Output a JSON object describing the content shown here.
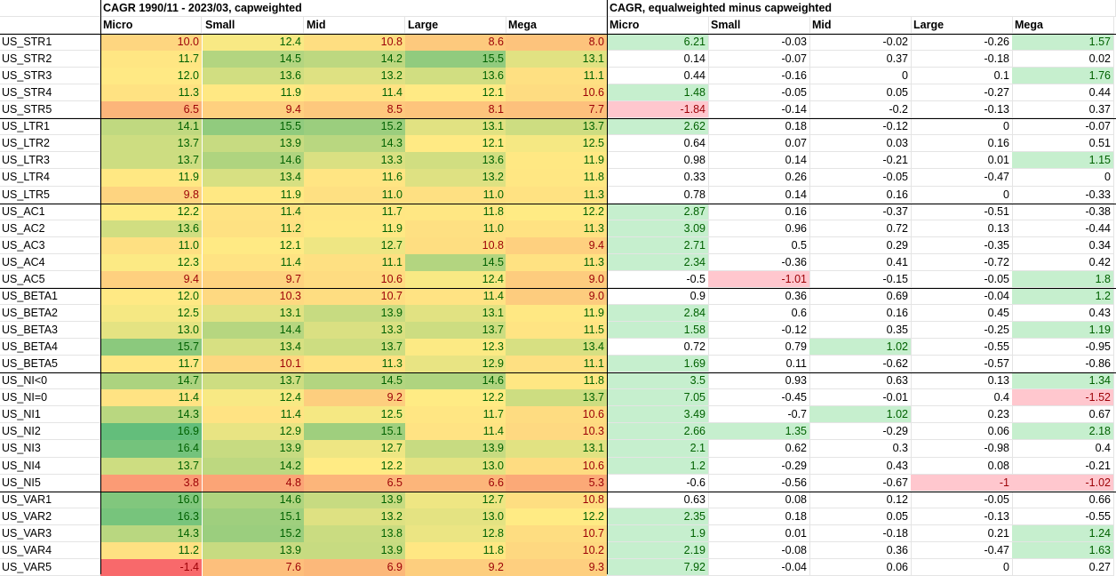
{
  "left_title": "CAGR 1990/11 - 2023/03, capweighted",
  "right_title": "CAGR, equalweighted minus capweighted",
  "columns": [
    "Micro",
    "Small",
    "Mid",
    "Large",
    "Mega"
  ],
  "colors": {
    "scale_low": "#f8696b",
    "scale_mid": "#ffeb84",
    "scale_high": "#63be7b",
    "positive_fill": "#c6efce",
    "positive_text": "#006100",
    "negative_fill": "#ffc7ce",
    "negative_text": "#9c0006"
  },
  "rows": [
    {
      "label": "US_STR1",
      "cap": [
        "10.0",
        "12.4",
        "10.8",
        "8.6",
        "8.0"
      ],
      "diff": [
        "6.21",
        "-0.03",
        "-0.02",
        "-0.26",
        "1.57"
      ]
    },
    {
      "label": "US_STR2",
      "cap": [
        "11.7",
        "14.5",
        "14.2",
        "15.5",
        "13.1"
      ],
      "diff": [
        "0.14",
        "-0.07",
        "0.37",
        "-0.18",
        "0.02"
      ]
    },
    {
      "label": "US_STR3",
      "cap": [
        "12.0",
        "13.6",
        "13.2",
        "13.6",
        "11.1"
      ],
      "diff": [
        "0.44",
        "-0.16",
        "0",
        "0.1",
        "1.76"
      ]
    },
    {
      "label": "US_STR4",
      "cap": [
        "11.3",
        "11.9",
        "11.4",
        "12.1",
        "10.6"
      ],
      "diff": [
        "1.48",
        "-0.05",
        "0.05",
        "-0.27",
        "0.44"
      ]
    },
    {
      "label": "US_STR5",
      "cap": [
        "6.5",
        "9.4",
        "8.5",
        "8.1",
        "7.7"
      ],
      "diff": [
        "-1.84",
        "-0.14",
        "-0.2",
        "-0.13",
        "0.37"
      ]
    },
    {
      "label": "US_LTR1",
      "cap": [
        "14.1",
        "15.5",
        "15.2",
        "13.1",
        "13.7"
      ],
      "diff": [
        "2.62",
        "0.18",
        "-0.12",
        "0",
        "-0.07"
      ]
    },
    {
      "label": "US_LTR2",
      "cap": [
        "13.7",
        "13.9",
        "14.3",
        "12.1",
        "12.5"
      ],
      "diff": [
        "0.64",
        "0.07",
        "0.03",
        "0.16",
        "0.51"
      ]
    },
    {
      "label": "US_LTR3",
      "cap": [
        "13.7",
        "14.6",
        "13.3",
        "13.6",
        "11.9"
      ],
      "diff": [
        "0.98",
        "0.14",
        "-0.21",
        "0.01",
        "1.15"
      ]
    },
    {
      "label": "US_LTR4",
      "cap": [
        "11.9",
        "13.4",
        "11.6",
        "13.2",
        "11.8"
      ],
      "diff": [
        "0.33",
        "0.26",
        "-0.05",
        "-0.47",
        "0"
      ]
    },
    {
      "label": "US_LTR5",
      "cap": [
        "9.8",
        "11.9",
        "11.0",
        "11.0",
        "11.3"
      ],
      "diff": [
        "0.78",
        "0.14",
        "0.16",
        "0",
        "-0.33"
      ]
    },
    {
      "label": "US_AC1",
      "cap": [
        "12.2",
        "11.4",
        "11.7",
        "11.8",
        "12.2"
      ],
      "diff": [
        "2.87",
        "0.16",
        "-0.37",
        "-0.51",
        "-0.38"
      ]
    },
    {
      "label": "US_AC2",
      "cap": [
        "13.6",
        "11.2",
        "11.9",
        "11.0",
        "11.3"
      ],
      "diff": [
        "3.09",
        "0.96",
        "0.72",
        "0.13",
        "-0.44"
      ]
    },
    {
      "label": "US_AC3",
      "cap": [
        "11.0",
        "12.1",
        "12.7",
        "10.8",
        "9.4"
      ],
      "diff": [
        "2.71",
        "0.5",
        "0.29",
        "-0.35",
        "0.34"
      ]
    },
    {
      "label": "US_AC4",
      "cap": [
        "12.3",
        "11.4",
        "11.1",
        "14.5",
        "11.3"
      ],
      "diff": [
        "2.34",
        "-0.36",
        "0.41",
        "-0.72",
        "0.42"
      ]
    },
    {
      "label": "US_AC5",
      "cap": [
        "9.4",
        "9.7",
        "10.6",
        "12.4",
        "9.0"
      ],
      "diff": [
        "-0.5",
        "-1.01",
        "-0.15",
        "-0.05",
        "1.8"
      ]
    },
    {
      "label": "US_BETA1",
      "cap": [
        "12.0",
        "10.3",
        "10.7",
        "11.4",
        "9.0"
      ],
      "diff": [
        "0.9",
        "0.36",
        "0.69",
        "-0.04",
        "1.2"
      ]
    },
    {
      "label": "US_BETA2",
      "cap": [
        "12.5",
        "13.1",
        "13.9",
        "13.1",
        "11.9"
      ],
      "diff": [
        "2.84",
        "0.6",
        "0.16",
        "0.45",
        "0.43"
      ]
    },
    {
      "label": "US_BETA3",
      "cap": [
        "13.0",
        "14.4",
        "13.3",
        "13.7",
        "11.5"
      ],
      "diff": [
        "1.58",
        "-0.12",
        "0.35",
        "-0.25",
        "1.19"
      ]
    },
    {
      "label": "US_BETA4",
      "cap": [
        "15.7",
        "13.4",
        "13.7",
        "12.3",
        "13.4"
      ],
      "diff": [
        "0.72",
        "0.79",
        "1.02",
        "-0.55",
        "-0.95"
      ]
    },
    {
      "label": "US_BETA5",
      "cap": [
        "11.7",
        "10.1",
        "11.3",
        "12.9",
        "11.1"
      ],
      "diff": [
        "1.69",
        "0.11",
        "-0.62",
        "-0.57",
        "-0.86"
      ]
    },
    {
      "label": "US_NI<0",
      "cap": [
        "14.7",
        "13.7",
        "14.5",
        "14.6",
        "11.8"
      ],
      "diff": [
        "3.5",
        "0.93",
        "0.63",
        "0.13",
        "1.34"
      ]
    },
    {
      "label": "US_NI=0",
      "cap": [
        "11.4",
        "12.4",
        "9.2",
        "12.2",
        "13.7"
      ],
      "diff": [
        "7.05",
        "-0.45",
        "-0.01",
        "0.4",
        "-1.52"
      ]
    },
    {
      "label": "US_NI1",
      "cap": [
        "14.3",
        "11.4",
        "12.5",
        "11.7",
        "10.6"
      ],
      "diff": [
        "3.49",
        "-0.7",
        "1.02",
        "0.23",
        "0.67"
      ]
    },
    {
      "label": "US_NI2",
      "cap": [
        "16.9",
        "12.9",
        "15.1",
        "11.4",
        "10.3"
      ],
      "diff": [
        "2.66",
        "1.35",
        "-0.29",
        "0.06",
        "2.18"
      ]
    },
    {
      "label": "US_NI3",
      "cap": [
        "16.4",
        "13.9",
        "12.7",
        "13.9",
        "13.1"
      ],
      "diff": [
        "2.1",
        "0.62",
        "0.3",
        "-0.98",
        "0.4"
      ]
    },
    {
      "label": "US_NI4",
      "cap": [
        "13.7",
        "14.2",
        "12.2",
        "13.0",
        "10.6"
      ],
      "diff": [
        "1.2",
        "-0.29",
        "0.43",
        "0.08",
        "-0.21"
      ]
    },
    {
      "label": "US_NI5",
      "cap": [
        "3.8",
        "4.8",
        "6.5",
        "6.6",
        "5.3"
      ],
      "diff": [
        "-0.6",
        "-0.56",
        "-0.67",
        "-1",
        "-1.02"
      ]
    },
    {
      "label": "US_VAR1",
      "cap": [
        "16.0",
        "14.6",
        "13.9",
        "12.7",
        "10.8"
      ],
      "diff": [
        "0.63",
        "0.08",
        "0.12",
        "-0.05",
        "0.66"
      ]
    },
    {
      "label": "US_VAR2",
      "cap": [
        "16.3",
        "15.1",
        "13.2",
        "13.0",
        "12.2"
      ],
      "diff": [
        "2.35",
        "0.18",
        "0.05",
        "-0.13",
        "-0.55"
      ]
    },
    {
      "label": "US_VAR3",
      "cap": [
        "14.3",
        "15.2",
        "13.8",
        "12.8",
        "10.7"
      ],
      "diff": [
        "1.9",
        "0.01",
        "-0.18",
        "0.21",
        "1.24"
      ]
    },
    {
      "label": "US_VAR4",
      "cap": [
        "11.2",
        "13.9",
        "13.9",
        "11.8",
        "10.2"
      ],
      "diff": [
        "2.19",
        "-0.08",
        "0.36",
        "-0.47",
        "1.63"
      ]
    },
    {
      "label": "US_VAR5",
      "cap": [
        "-1.4",
        "7.6",
        "6.9",
        "9.2",
        "9.3"
      ],
      "diff": [
        "7.92",
        "-0.04",
        "0.06",
        "0",
        "0.27"
      ]
    }
  ]
}
